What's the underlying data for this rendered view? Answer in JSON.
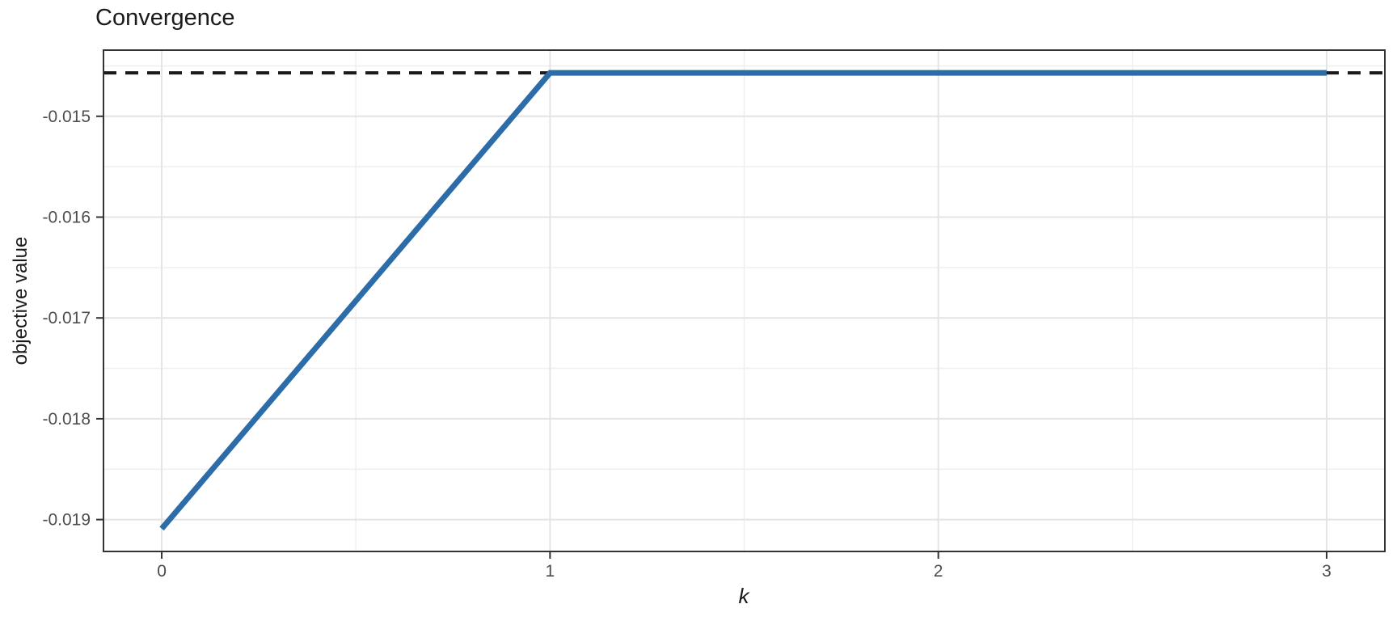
{
  "chart_data": {
    "type": "line",
    "title": "Convergence",
    "xlabel": "k",
    "ylabel": "objective value",
    "xlim": [
      -0.15,
      3.15
    ],
    "ylim": [
      -0.019316,
      -0.014344
    ],
    "grid": "on",
    "legend": "none",
    "x_ticks": {
      "values": [
        0,
        1,
        2,
        3
      ],
      "labels": [
        "0",
        "1",
        "2",
        "3"
      ]
    },
    "x_minor_ticks": [
      0.5,
      1.5,
      2.5
    ],
    "y_ticks": {
      "values": [
        -0.015,
        -0.016,
        -0.017,
        -0.018,
        -0.019
      ],
      "labels": [
        "-0.015",
        "-0.016",
        "-0.017",
        "-0.018",
        "-0.019"
      ]
    },
    "y_minor_ticks": [
      -0.0145,
      -0.0155,
      -0.0165,
      -0.0175,
      -0.0185
    ],
    "series": [
      {
        "name": "objective value",
        "x": [
          0,
          1,
          2,
          3
        ],
        "y": [
          -0.01909,
          -0.01457,
          -0.01457,
          -0.01457
        ],
        "color": "#2C6CA8",
        "stroke_width": 7
      }
    ],
    "reference_line": {
      "value": -0.01457,
      "orientation": "horizontal",
      "style": "dashed",
      "color": "#1A1A1A",
      "stroke_width": 4
    },
    "colors": {
      "panel_background": "#FFFFFF",
      "panel_border": "#333333",
      "grid_major": "#E4E4E4",
      "grid_minor": "#EFEFEF",
      "tick_mark": "#333333",
      "tick_label": "#4D4D4D",
      "title_text": "#1A1A1A"
    }
  }
}
